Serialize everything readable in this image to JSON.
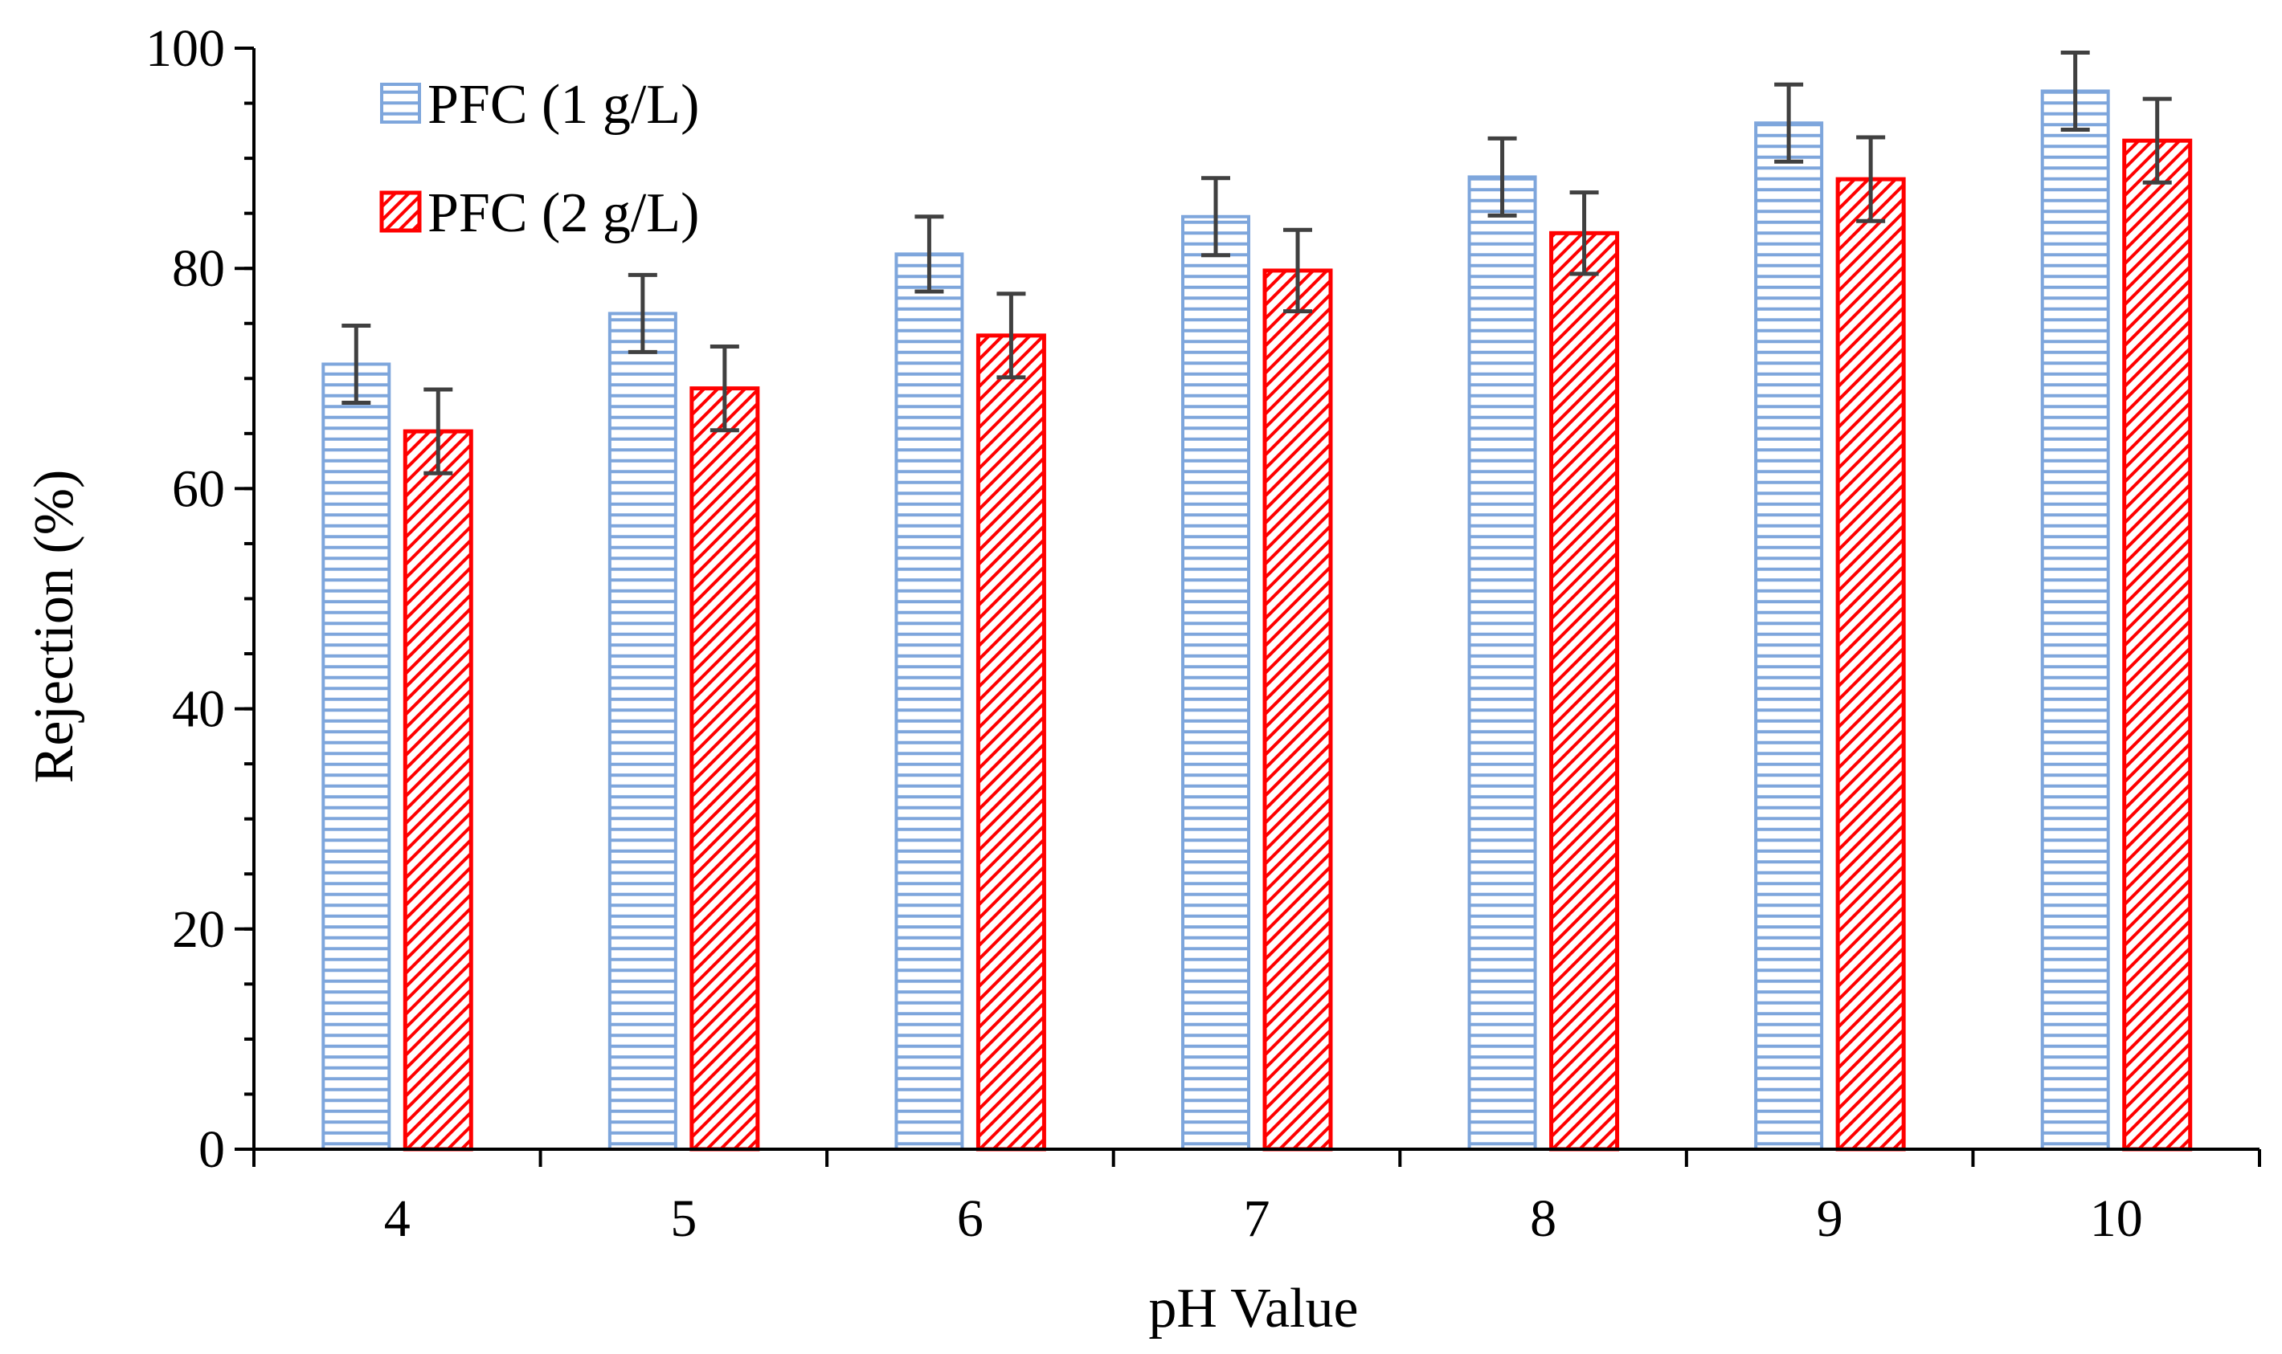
{
  "chart_data": {
    "type": "bar",
    "title": "",
    "xlabel": "pH Value",
    "ylabel": "Rejection (%)",
    "ylim": [
      0,
      100
    ],
    "y_major_ticks": [
      0,
      20,
      40,
      60,
      80,
      100
    ],
    "y_minor_step": 5,
    "grid": false,
    "legend_position": "top-left",
    "categories": [
      "4",
      "5",
      "6",
      "7",
      "8",
      "9",
      "10"
    ],
    "series": [
      {
        "name": "PFC (1 g/L)",
        "color": "#7ea6dc",
        "pattern": "horizontal-lines",
        "values": [
          71.3,
          75.9,
          81.3,
          84.7,
          88.3,
          93.2,
          96.1
        ],
        "errors": [
          3.5,
          3.5,
          3.4,
          3.5,
          3.5,
          3.5,
          3.5
        ]
      },
      {
        "name": "PFC (2 g/L)",
        "color": "#ff0000",
        "pattern": "diagonal-lines",
        "values": [
          65.2,
          69.1,
          73.9,
          79.8,
          83.2,
          88.1,
          91.6
        ],
        "errors": [
          3.8,
          3.8,
          3.8,
          3.7,
          3.7,
          3.8,
          3.8
        ]
      }
    ],
    "error_bar_color": "#404040"
  }
}
